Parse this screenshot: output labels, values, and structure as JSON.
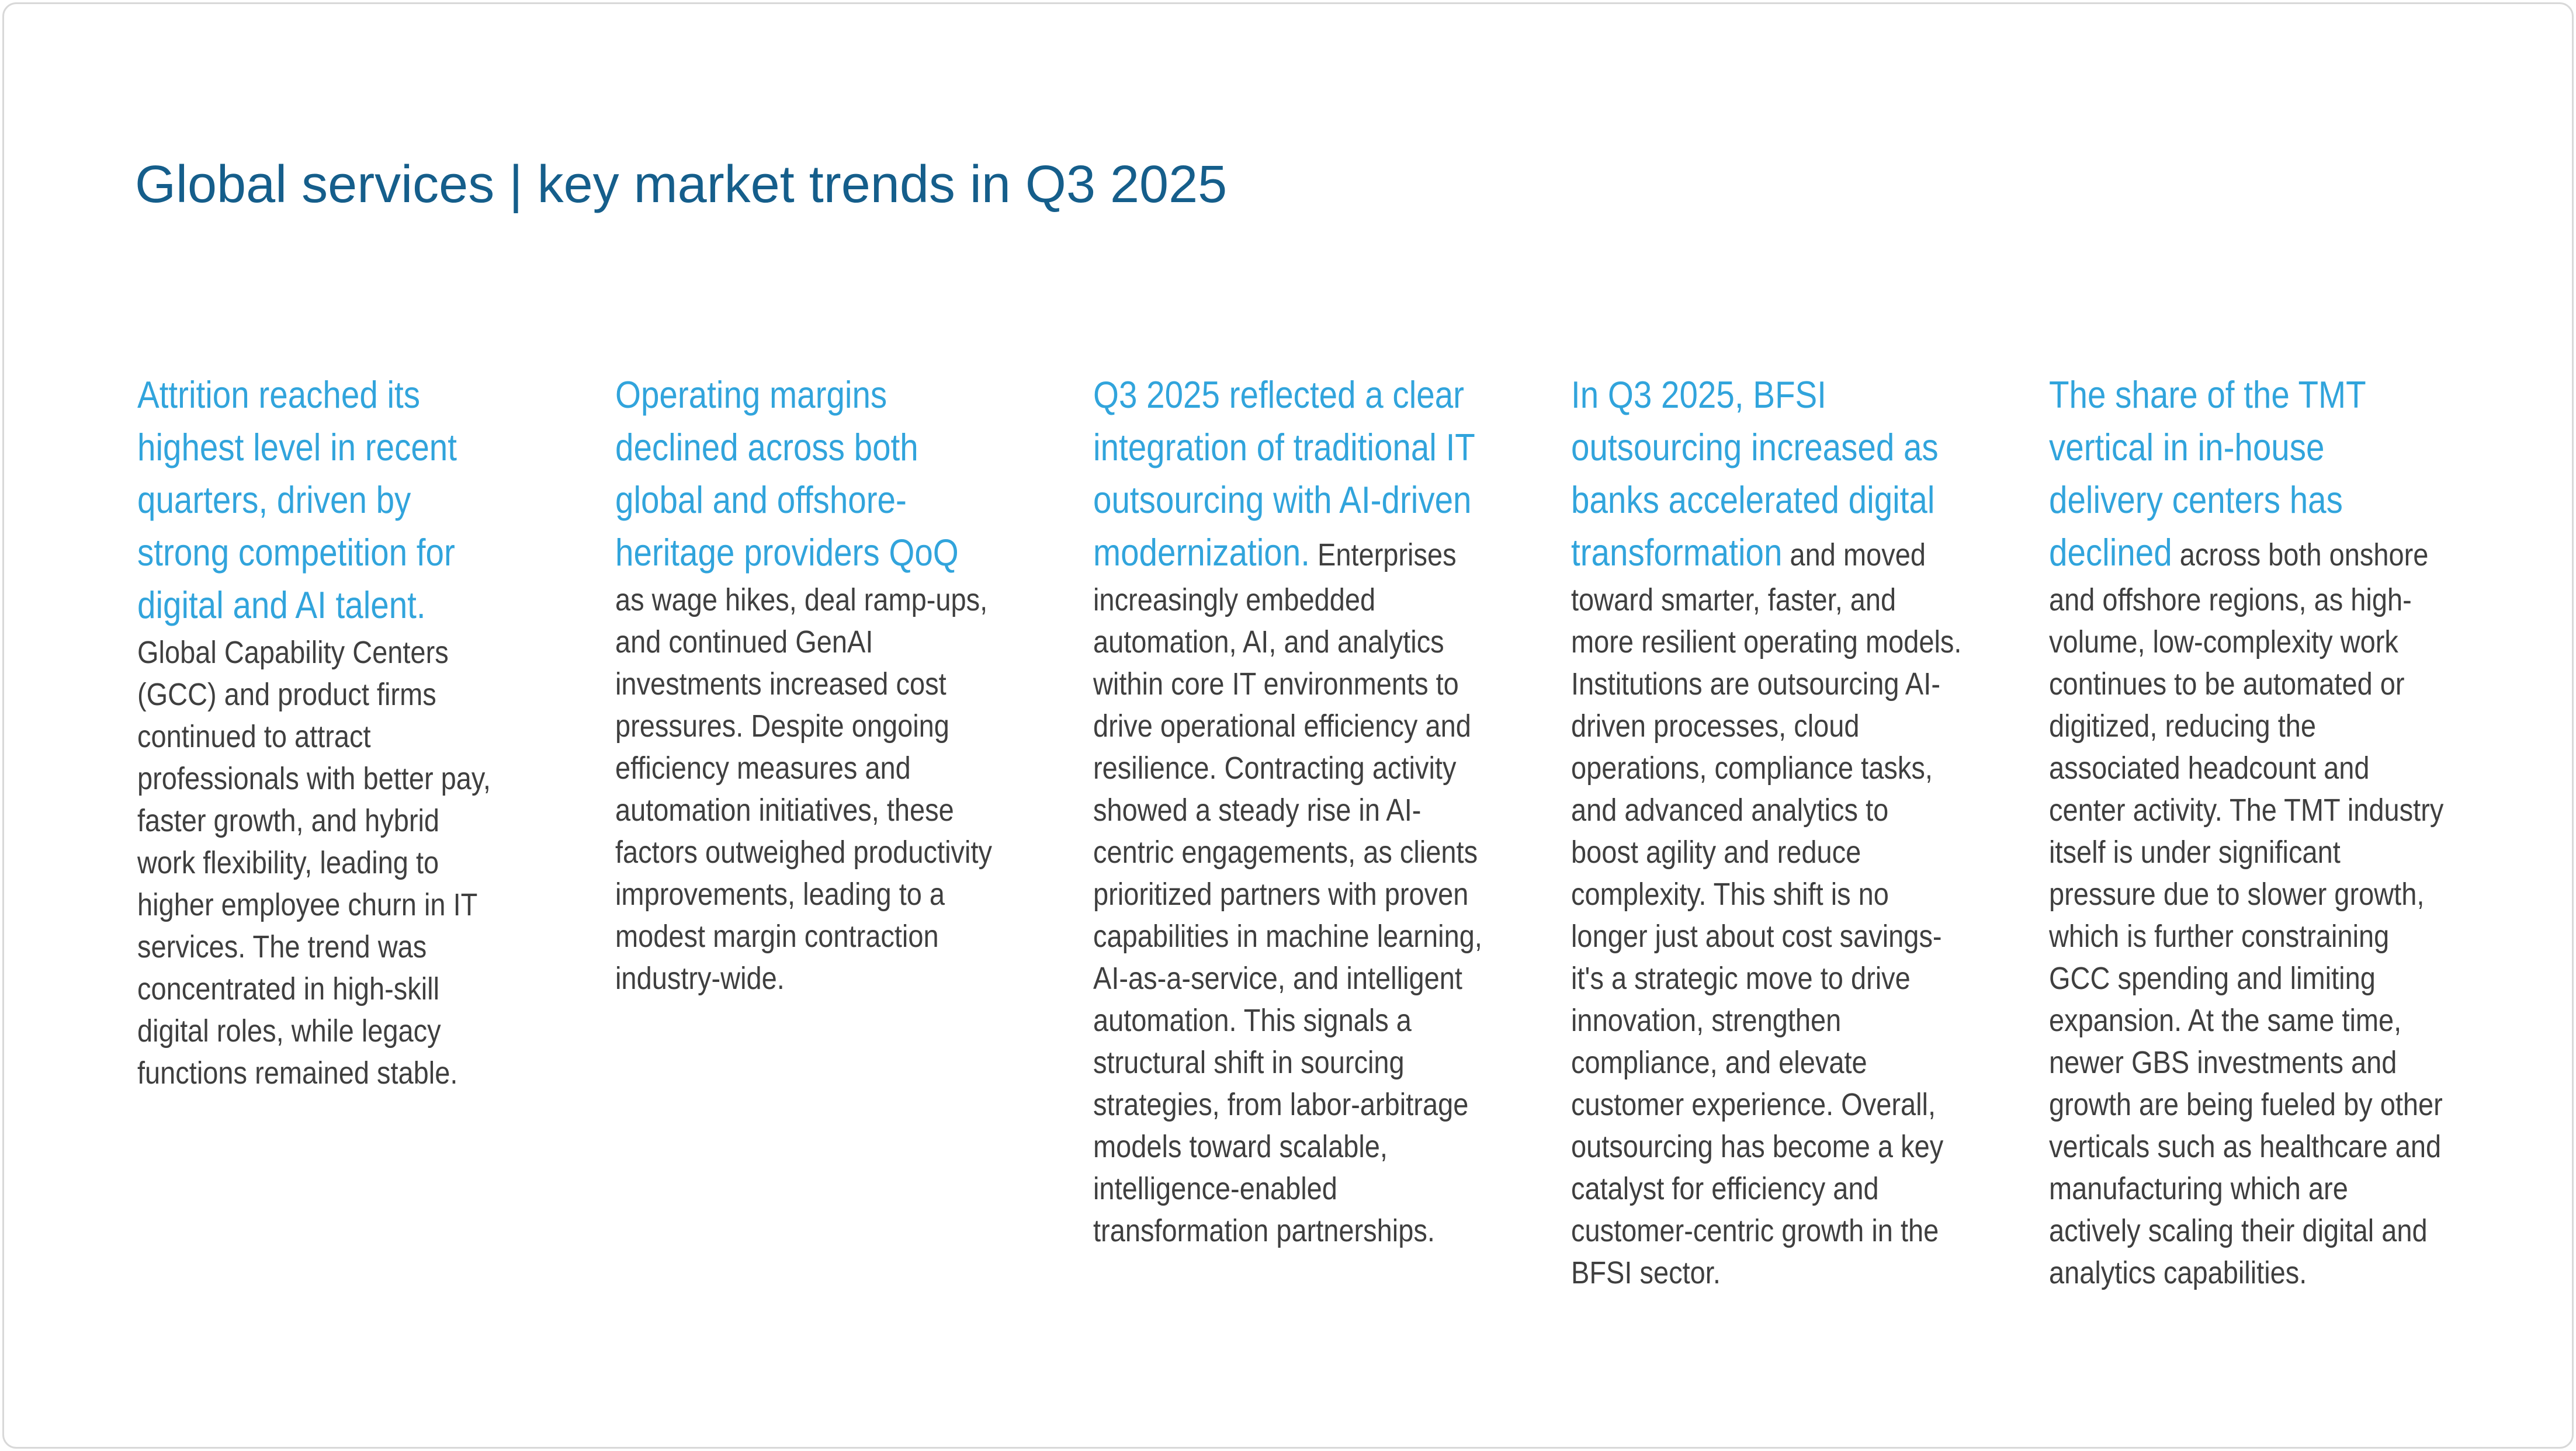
{
  "slide": {
    "title": "Global services | key market trends in Q3 2025",
    "columns": [
      {
        "headline": "Attrition reached its highest level in recent quarters, driven by strong competition for digital and AI talent.",
        "body": "Global Capability Centers (GCC) and product firms continued to attract professionals with better pay, faster growth, and hybrid work flexibility, leading to higher employee churn in IT services. The trend was concentrated in high-skill digital roles, while legacy functions remained stable."
      },
      {
        "headline": "Operating margins declined across both global and offshore-heritage providers QoQ",
        "body": "as wage hikes, deal ramp-ups, and continued GenAI investments increased cost pressures. Despite ongoing efficiency measures and automation initiatives, these factors outweighed productivity improvements, leading to a modest margin contraction industry-wide."
      },
      {
        "headline": "Q3 2025 reflected a clear integration of traditional IT outsourcing with AI-driven modernization.",
        "body": "Enterprises increasingly embedded automation, AI, and analytics within core IT environments to drive operational efficiency and resilience. Contracting activity showed a steady rise in AI-centric engagements, as clients prioritized partners with proven capabilities in machine learning, AI-as-a-service, and intelligent automation. This signals a structural shift in sourcing strategies, from labor-arbitrage models toward scalable, intelligence-enabled transformation partnerships."
      },
      {
        "headline": "In Q3 2025, BFSI outsourcing increased as banks accelerated digital transformation",
        "body": "and moved toward smarter, faster, and more resilient operating models. Institutions are outsourcing AI-driven processes, cloud operations, compliance tasks, and advanced analytics to boost agility and reduce complexity. This shift is no longer just about cost savings-it's a strategic move to drive innovation, strengthen compliance, and elevate customer experience. Overall, outsourcing has become a key catalyst for efficiency and customer-centric growth in the BFSI sector."
      },
      {
        "headline": "The share of the TMT vertical in in-house delivery centers has declined",
        "body": "across both onshore and offshore regions, as high-volume, low-complexity work continues to be automated or digitized, reducing the associated headcount and center activity. The TMT industry itself is under significant pressure due to slower growth, which is further constraining GCC spending and limiting expansion. At the same time, newer GBS investments and growth are being fueled by other verticals such as healthcare and manufacturing which are actively scaling their digital and analytics capabilities."
      }
    ]
  },
  "colors": {
    "title": "#155E8B",
    "headline": "#31A4DC",
    "body": "#3F3F3F",
    "border": "#D8D8D8",
    "background": "#FFFFFF"
  }
}
